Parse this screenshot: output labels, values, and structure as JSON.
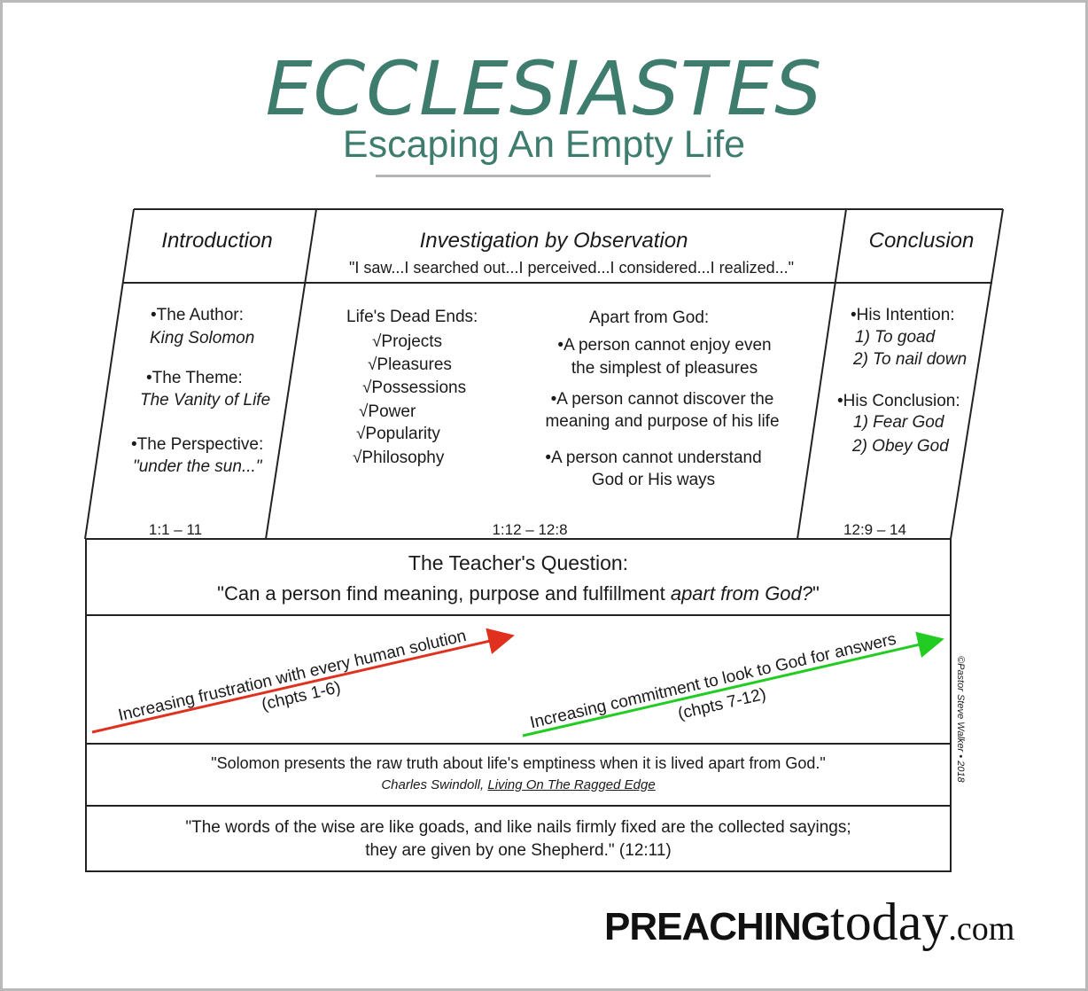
{
  "header": {
    "title": "ECCLESIASTES",
    "subtitle": "Escaping An Empty Life"
  },
  "columns": {
    "introduction": {
      "heading": "Introduction",
      "items": [
        {
          "label": "•The Author:",
          "value": "King Solomon"
        },
        {
          "label": "•The Theme:",
          "value": "The Vanity of Life"
        },
        {
          "label": "•The Perspective:",
          "value": "\"under the sun...\""
        }
      ],
      "reference": "1:1 – 11"
    },
    "investigation": {
      "heading": "Investigation by Observation",
      "quote": "\"I saw...I searched out...I perceived...I considered...I realized...\"",
      "dead_ends_heading": "Life's Dead Ends:",
      "dead_ends": [
        "√Projects",
        "√Pleasures",
        "√Possessions",
        "√Power",
        "√Popularity",
        "√Philosophy"
      ],
      "apart_heading": "Apart from God:",
      "apart_points": [
        {
          "line1": "•A person cannot enjoy even",
          "line2": "the simplest of pleasures"
        },
        {
          "line1": "•A person cannot discover the",
          "line2": "meaning and purpose of his life"
        },
        {
          "line1": "•A person cannot understand",
          "line2": "God or His ways"
        }
      ],
      "reference": "1:12 – 12:8"
    },
    "conclusion": {
      "heading": "Conclusion",
      "intention_label": "•His Intention:",
      "intention_items": [
        "1) To goad",
        "2) To nail down"
      ],
      "conclusion_label": "•His Conclusion:",
      "conclusion_items": [
        "1) Fear God",
        "2) Obey God"
      ],
      "reference": "12:9 – 14"
    }
  },
  "question": {
    "heading": "The Teacher's Question:",
    "text_plain": "\"Can a person find meaning, purpose and fulfillment ",
    "text_italic": "apart from God?",
    "text_end": "\""
  },
  "arrows": {
    "left": {
      "label": "Increasing frustration with every human solution",
      "chapters": "(chpts 1-6)",
      "color": "#e0301e"
    },
    "right": {
      "label": "Increasing commitment to look to God for answers",
      "chapters": "(chpts 7-12)",
      "color": "#22cc22"
    }
  },
  "quote_swindoll": {
    "text": "\"Solomon presents the raw truth about life's emptiness when it is lived apart from God.\"",
    "author": "Charles Swindoll, ",
    "book": "Living On The Ragged Edge"
  },
  "quote_scripture": {
    "line1": "\"The words of the wise are like goads, and like nails firmly fixed are the collected sayings;",
    "line2": "they are given by one Shepherd.\"  (12:11)"
  },
  "copyright": "©Pastor Steve Walker  •  2018",
  "logo": {
    "part1": "PREACHING",
    "part2": "today",
    "part3": ".com"
  },
  "colors": {
    "title": "#3e7d6d",
    "line": "#222222"
  }
}
